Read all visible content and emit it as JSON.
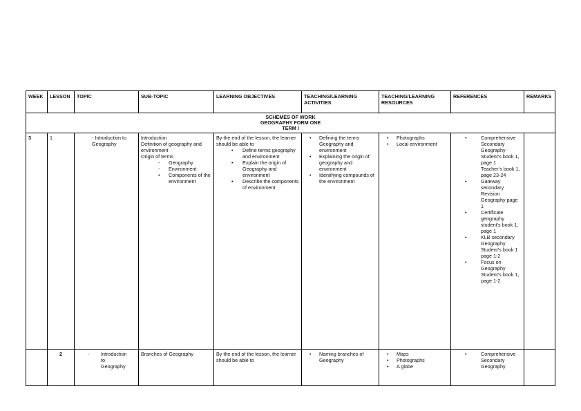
{
  "headers": [
    "WEEK",
    "LESSON",
    "TOPIC",
    "SUB-TOPIC",
    "LEARNING OBJECTIVES",
    "TEACHING/LEARNING ACTIVITIES",
    "TEACHING/LEARNING RESOURCES",
    "REFERENCES",
    "REMARKS"
  ],
  "title_lines": [
    "SCHEMES OF WORK",
    "GEOGRAPHY FORM ONE",
    "TERM I"
  ],
  "rows": [
    {
      "week": "3",
      "lesson": "1",
      "topic": [
        {
          "t": "- Introduction to Geography",
          "k": "p"
        }
      ],
      "subtopic": [
        {
          "t": "Introduction",
          "k": "p"
        },
        {
          "t": "Definition of geography and environment",
          "k": "p"
        },
        {
          "t": "Origin of terms",
          "k": "p"
        },
        {
          "t": "Geography",
          "k": "d"
        },
        {
          "t": "Environment",
          "k": "d"
        },
        {
          "t": "Components of the environment",
          "k": "b"
        }
      ],
      "objectives": [
        {
          "t": "By the end of the lesson, the learner should be able to",
          "k": "p"
        },
        {
          "t": "Define terms geography and environment",
          "k": "b"
        },
        {
          "t": "Explain the origin of Geography and environment",
          "k": "b"
        },
        {
          "t": "Describe the components of environment",
          "k": "b"
        }
      ],
      "activities": [
        {
          "t": "Defining the terms",
          "k": "b"
        },
        {
          "t": "Geography and environment",
          "k": "n"
        },
        {
          "t": "Explaining the origin of geography and environment",
          "k": "b"
        },
        {
          "t": "Identifying compounds of the environment",
          "k": "b"
        }
      ],
      "resources": [
        {
          "t": "Photographs",
          "k": "b"
        },
        {
          "t": "Local environment",
          "k": "b"
        }
      ],
      "references": [
        {
          "t": "Comprehensive Secondary Geography Student’s book 1, page 1",
          "k": "b"
        },
        {
          "t": "Teacher’s book 1, page 23-24",
          "k": "n"
        },
        {
          "t": "Gateway secondary Revision Geography page 1",
          "k": "b"
        },
        {
          "t": "Certificate geography student’s book 1, page 1",
          "k": "b"
        },
        {
          "t": "KLB secondary Geography Student’s book 1 page 1-2",
          "k": "b"
        },
        {
          "t": "Focus on Geography Student’s book 1, page 1-2",
          "k": "b"
        }
      ],
      "remarks": ""
    },
    {
      "week": "",
      "lesson": "2",
      "topic": [
        {
          "t": "Introduction to Geography",
          "k": "d"
        }
      ],
      "subtopic": [
        {
          "t": "Branches of Geography",
          "k": "p"
        }
      ],
      "objectives": [
        {
          "t": "By the end of the lesson, the learner should be able to",
          "k": "p"
        }
      ],
      "activities": [
        {
          "t": "Naming branches of Geography",
          "k": "b"
        }
      ],
      "resources": [
        {
          "t": "Maps",
          "k": "b"
        },
        {
          "t": "Photographs",
          "k": "b"
        },
        {
          "t": "A globe",
          "k": "b"
        }
      ],
      "references": [
        {
          "t": "Comprehensive Secondary Geography",
          "k": "b"
        }
      ],
      "remarks": ""
    }
  ]
}
